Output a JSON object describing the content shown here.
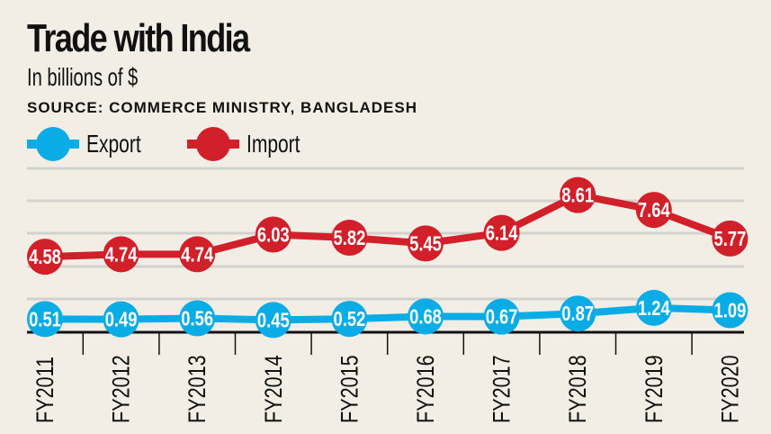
{
  "chart_data": {
    "type": "line",
    "title": "Trade with India",
    "subtitle": "In billions of $",
    "source": "SOURCE: COMMERCE MINISTRY, BANGLADESH",
    "categories": [
      "FY2011",
      "FY2012",
      "FY2013",
      "FY2014",
      "FY2015",
      "FY2016",
      "FY2017",
      "FY2018",
      "FY2019",
      "FY2020"
    ],
    "series": [
      {
        "name": "Export",
        "color": "#0aace6",
        "values": [
          0.51,
          0.49,
          0.56,
          0.45,
          0.52,
          0.68,
          0.67,
          0.87,
          1.24,
          1.09
        ]
      },
      {
        "name": "Import",
        "color": "#d2202a",
        "values": [
          4.58,
          4.74,
          4.74,
          6.03,
          5.82,
          5.45,
          6.14,
          8.61,
          7.64,
          5.77
        ]
      }
    ],
    "ylim": [
      0,
      10
    ],
    "grid": true,
    "legend": "top-left",
    "data_labels": true
  }
}
